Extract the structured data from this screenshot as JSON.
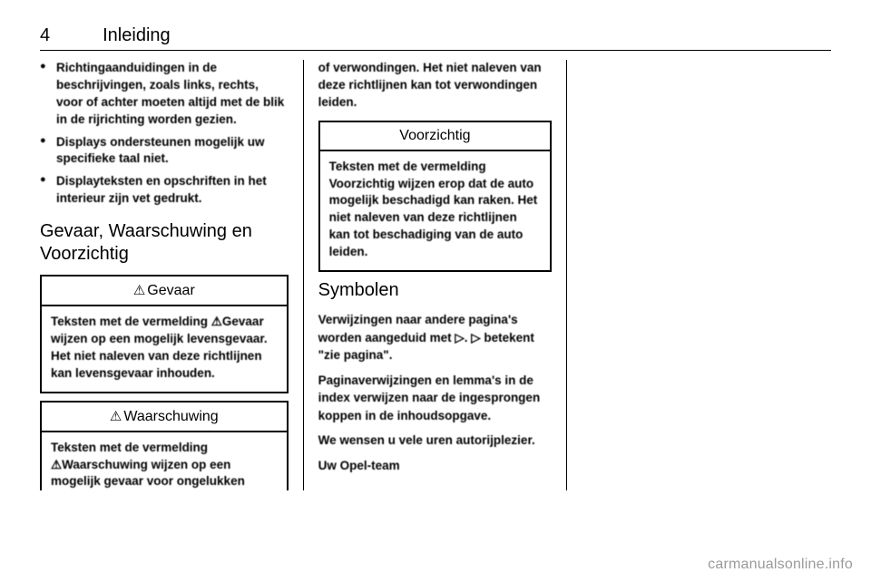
{
  "header": {
    "page_number": "4",
    "chapter": "Inleiding"
  },
  "col1": {
    "bullets": [
      "Richtingaanduidingen in de beschrijvingen, zoals links, rechts, voor of achter moeten altijd met de blik in de rijrichting worden gezien.",
      "Displays ondersteunen mogelijk uw specifieke taal niet.",
      "Displayteksten en opschriften in het interieur zijn vet gedrukt."
    ],
    "section_heading": "Gevaar, Waarschuwing en Voorzichtig",
    "danger": {
      "title": "Gevaar",
      "symbol": "⚠",
      "body": "Teksten met de vermelding ⚠Gevaar wijzen op een mogelijk levensgevaar. Het niet naleven van deze richtlijnen kan levensge­vaar inhouden."
    },
    "warning": {
      "title": "Waarschuwing",
      "symbol": "⚠",
      "body": "Teksten met de vermelding ⚠Waarschuwing wijzen op een mogelijk gevaar voor ongelukken"
    }
  },
  "col2": {
    "continuation": "of verwondingen. Het niet naleven van deze richtlijnen kan tot verwondingen leiden.",
    "caution": {
      "title": "Voorzichtig",
      "body": "Teksten met de vermelding Voorzichtig wijzen erop dat de auto mogelijk beschadigd kan raken. Het niet naleven van deze richtlijnen kan tot beschadiging van de auto leiden."
    },
    "symbols_heading": "Symbolen",
    "symbols_p1": "Verwijzingen naar andere pagina's worden aangeduid met ▷. ▷ betekent \"zie pagina\".",
    "symbols_p2": "Paginaverwijzingen en lemma's in de index verwijzen naar de ingespron­gen koppen in de inhoudsopgave.",
    "symbols_p3": "We wensen u vele uren autorijplezier.",
    "symbols_p4": "Uw Opel-team"
  },
  "watermark": "carmanualsonline.info"
}
